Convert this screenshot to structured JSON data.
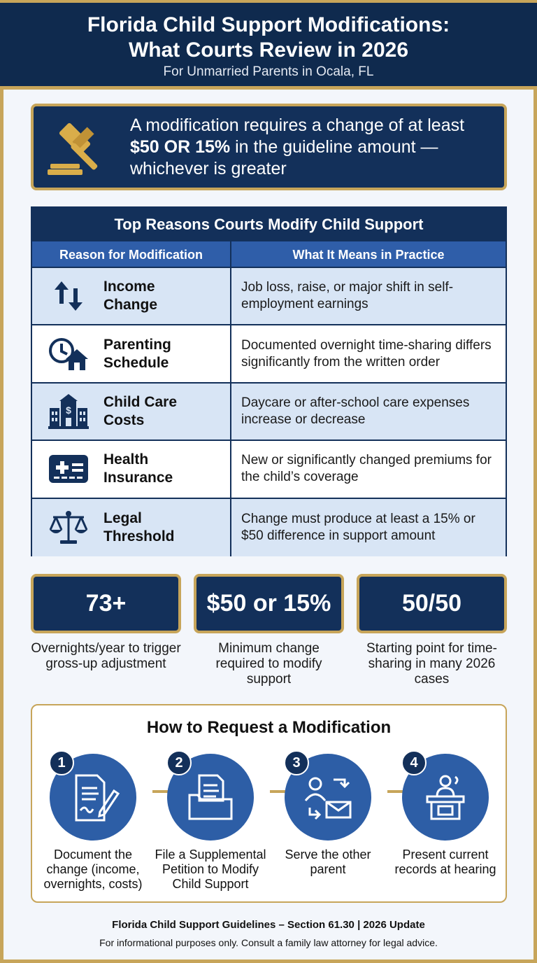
{
  "header": {
    "title_line1": "Florida Child Support Modifications:",
    "title_line2": "What Courts Review in 2026",
    "subtitle": "For Unmarried Parents in Ocala, FL"
  },
  "callout": {
    "icon": "gavel-icon",
    "line1": "A modification requires a change of at least",
    "line2_bold": "$50 OR 15%",
    "line2_rest": " in the guideline amount —",
    "line3": "whichever is greater"
  },
  "table": {
    "title": "Top Reasons Courts Modify Child Support",
    "headers": [
      "Reason for Modification",
      "What It Means in Practice"
    ],
    "rows": [
      {
        "icon": "up-down-arrows-icon",
        "reason_l1": "Income",
        "reason_l2": "Change",
        "meaning": "Job loss, raise, or major shift in self-employment earnings"
      },
      {
        "icon": "clock-house-icon",
        "reason_l1": "Parenting",
        "reason_l2": "Schedule",
        "meaning": "Documented overnight time-sharing differs significantly from the written order"
      },
      {
        "icon": "school-building-icon",
        "reason_l1": "Child Care",
        "reason_l2": "Costs",
        "meaning": "Daycare or after-school care expenses increase or decrease"
      },
      {
        "icon": "health-card-icon",
        "reason_l1": "Health",
        "reason_l2": "Insurance",
        "meaning": "New or significantly changed premiums for the child’s coverage"
      },
      {
        "icon": "scales-icon",
        "reason_l1": "Legal",
        "reason_l2": "Threshold",
        "meaning": "Change must produce at least a 15% or $50 difference in support amount"
      }
    ]
  },
  "stats": [
    {
      "value": "73+",
      "caption": "Overnights/year to trigger gross-up adjustment"
    },
    {
      "value": "$50 or 15%",
      "caption": "Minimum change required to modify support"
    },
    {
      "value": "50/50",
      "caption": "Starting point for time-sharing in many 2026 cases"
    }
  ],
  "steps": {
    "title": "How to Request a Modification",
    "items": [
      {
        "num": "1",
        "icon": "document-pen-icon",
        "caption": "Document the change (income, overnights, costs)"
      },
      {
        "num": "2",
        "icon": "file-folder-icon",
        "caption": "File a Supplemental Petition to Modify Child Support"
      },
      {
        "num": "3",
        "icon": "person-mail-icon",
        "caption": "Serve the other parent"
      },
      {
        "num": "4",
        "icon": "podium-speaker-icon",
        "caption": "Present current records at hearing"
      }
    ]
  },
  "footer": {
    "line1": "Florida Child Support Guidelines – Section 61.30 | 2026 Update",
    "line2": "For informational purposes only. Consult a family law attorney for legal advice."
  },
  "colors": {
    "navy": "#13305a",
    "gold": "#c7a55a",
    "blue": "#2d5ea6",
    "row_shade": "#d8e5f5"
  }
}
